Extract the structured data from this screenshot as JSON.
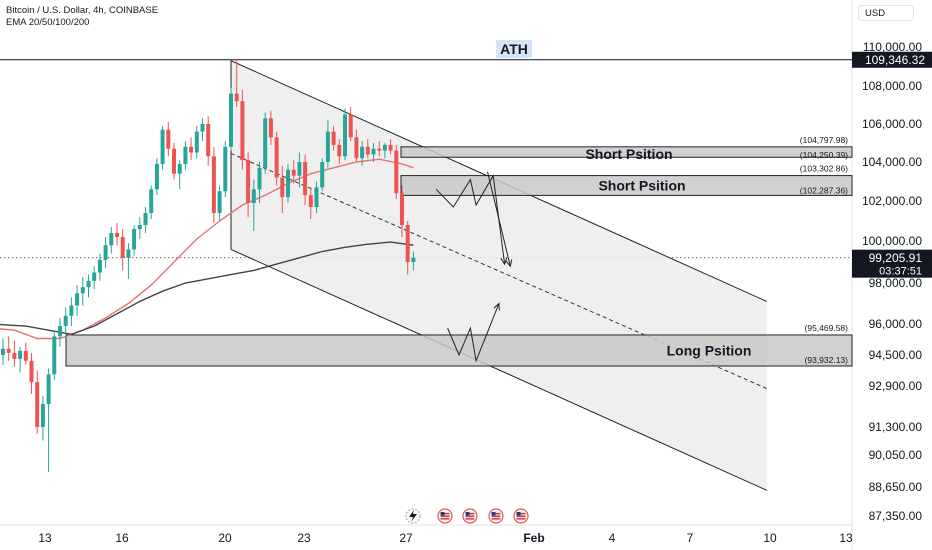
{
  "header": {
    "symbol_line": "Bitcoin / U.S. Dollar, 4h, COINBASE",
    "indicator_line": "EMA 20/50/100/200",
    "currency": "USD"
  },
  "chart_data": {
    "type": "candlestick",
    "symbol": "Bitcoin / U.S. Dollar",
    "interval": "4h",
    "exchange": "COINBASE",
    "indicators": "EMA 20/50/100/200",
    "x_tick_labels": [
      "13",
      "16",
      "20",
      "23",
      "27",
      "Feb",
      "4",
      "7",
      "10",
      "13"
    ],
    "y_tick_labels": [
      "110,000.00",
      "108,000.00",
      "106,000.00",
      "104,000.00",
      "102,000.00",
      "100,000.00",
      "98,000.00",
      "96,000.00",
      "94,500.00",
      "92,900.00",
      "91,300.00",
      "90,050.00",
      "88,650.00",
      "87,350.00"
    ],
    "ylim": [
      87000,
      111000
    ],
    "ath": {
      "label": "ATH",
      "price": 109346.32,
      "price_label": "109,346.32"
    },
    "current_price": {
      "price": 99205.91,
      "price_label": "99,205.91",
      "countdown": "03:37:51"
    },
    "zones": [
      {
        "label": "Short Psition",
        "top": 104797.98,
        "bottom": 104250.39,
        "top_label": "(104,797.98)",
        "bottom_label": "(104,250.39)"
      },
      {
        "label": "Short Psition",
        "top": 103302.86,
        "bottom": 102287.36,
        "top_label": "(103,302.86)",
        "bottom_label": "(102,287.36)"
      },
      {
        "label": "Long Psition",
        "top": 95469.58,
        "bottom": 93932.13,
        "top_label": "(95,469.58)",
        "bottom_label": "(93,932.13)"
      }
    ],
    "series": [
      {
        "style": "ohlc",
        "values": [
          [
            94500,
            95300,
            94000,
            94800
          ],
          [
            94800,
            95400,
            94200,
            94600
          ],
          [
            94600,
            95200,
            93900,
            94300
          ],
          [
            94300,
            94900,
            93600,
            94700
          ],
          [
            94700,
            95100,
            94000,
            94200
          ],
          [
            94200,
            94600,
            92600,
            93100
          ],
          [
            93100,
            93700,
            91000,
            91300
          ],
          [
            91300,
            92500,
            90700,
            92200
          ],
          [
            92200,
            93800,
            89300,
            93500
          ],
          [
            93500,
            95600,
            93200,
            95400
          ],
          [
            95400,
            96300,
            94900,
            95900
          ],
          [
            95900,
            96800,
            95400,
            96400
          ],
          [
            96400,
            97300,
            95900,
            96900
          ],
          [
            96900,
            97900,
            96400,
            97500
          ],
          [
            97500,
            98300,
            96900,
            97800
          ],
          [
            97800,
            98400,
            97300,
            98100
          ],
          [
            98100,
            98800,
            97700,
            98500
          ],
          [
            98500,
            99400,
            98100,
            99100
          ],
          [
            99100,
            100200,
            98700,
            99800
          ],
          [
            99800,
            100700,
            99400,
            100400
          ],
          [
            100400,
            100900,
            99800,
            100200
          ],
          [
            100200,
            100600,
            98600,
            99200
          ],
          [
            99200,
            99900,
            98200,
            99600
          ],
          [
            99600,
            100800,
            99300,
            100600
          ],
          [
            100600,
            101200,
            100100,
            100800
          ],
          [
            100800,
            101700,
            100400,
            101400
          ],
          [
            101400,
            102800,
            101100,
            102600
          ],
          [
            102600,
            104200,
            102300,
            103900
          ],
          [
            103900,
            105900,
            103600,
            105700
          ],
          [
            105700,
            106100,
            104300,
            104700
          ],
          [
            104700,
            105000,
            103100,
            103400
          ],
          [
            103400,
            104100,
            102600,
            103900
          ],
          [
            103900,
            105100,
            103600,
            104800
          ],
          [
            104800,
            105300,
            104100,
            104500
          ],
          [
            104500,
            105900,
            104200,
            105600
          ],
          [
            105600,
            106300,
            105100,
            106000
          ],
          [
            106000,
            106400,
            103800,
            104300
          ],
          [
            104300,
            104800,
            100900,
            101400
          ],
          [
            101400,
            102800,
            101000,
            102500
          ],
          [
            102500,
            105100,
            102200,
            104800
          ],
          [
            104800,
            107900,
            104600,
            107600
          ],
          [
            107600,
            109346,
            106900,
            107200
          ],
          [
            107200,
            107800,
            103600,
            104100
          ],
          [
            104100,
            104500,
            101200,
            101900
          ],
          [
            101900,
            103100,
            100500,
            102600
          ],
          [
            102600,
            104000,
            101900,
            103700
          ],
          [
            103700,
            106600,
            103400,
            106300
          ],
          [
            106300,
            106700,
            104900,
            105300
          ],
          [
            105300,
            105600,
            102800,
            103200
          ],
          [
            103200,
            103800,
            101400,
            102200
          ],
          [
            102200,
            103900,
            101900,
            103600
          ],
          [
            103600,
            104100,
            102900,
            103300
          ],
          [
            103300,
            104500,
            102700,
            104000
          ],
          [
            104000,
            104400,
            101800,
            102300
          ],
          [
            102300,
            102700,
            101100,
            101700
          ],
          [
            101700,
            103000,
            101400,
            102700
          ],
          [
            102700,
            104200,
            102500,
            104000
          ],
          [
            104000,
            106200,
            103700,
            105600
          ],
          [
            105600,
            105900,
            104600,
            104900
          ],
          [
            104900,
            105200,
            103900,
            104300
          ],
          [
            104300,
            106800,
            104100,
            106500
          ],
          [
            106500,
            106900,
            105100,
            105300
          ],
          [
            105300,
            105700,
            104000,
            104200
          ],
          [
            104200,
            105100,
            103800,
            104800
          ],
          [
            104800,
            105200,
            104200,
            104400
          ],
          [
            104400,
            105000,
            104000,
            104700
          ],
          [
            104700,
            105100,
            104300,
            104600
          ],
          [
            104600,
            105000,
            104200,
            104900
          ],
          [
            104900,
            105200,
            104400,
            104600
          ],
          [
            104600,
            104900,
            102100,
            102400
          ],
          [
            102400,
            102800,
            100200,
            100800
          ],
          [
            100800,
            101000,
            98400,
            99000
          ],
          [
            99000,
            99500,
            98600,
            99206
          ]
        ]
      },
      {
        "name": "EMA 50",
        "color": "#e57373",
        "values": [
          [
            -2,
            95800
          ],
          [
            2,
            95700
          ],
          [
            6,
            95300
          ],
          [
            10,
            95300
          ],
          [
            14,
            95700
          ],
          [
            18,
            96300
          ],
          [
            22,
            97000
          ],
          [
            26,
            97900
          ],
          [
            30,
            99000
          ],
          [
            34,
            100100
          ],
          [
            38,
            101000
          ],
          [
            42,
            101800
          ],
          [
            46,
            102300
          ],
          [
            50,
            102900
          ],
          [
            54,
            103400
          ],
          [
            58,
            103700
          ],
          [
            62,
            104000
          ],
          [
            66,
            104150
          ],
          [
            70,
            103900
          ],
          [
            72,
            103700
          ]
        ]
      },
      {
        "name": "EMA 200",
        "color": "#444444",
        "values": [
          [
            -2,
            96000
          ],
          [
            4,
            95900
          ],
          [
            8,
            95700
          ],
          [
            12,
            95500
          ],
          [
            16,
            95900
          ],
          [
            20,
            96500
          ],
          [
            24,
            97100
          ],
          [
            28,
            97600
          ],
          [
            32,
            98000
          ],
          [
            36,
            98200
          ],
          [
            40,
            98400
          ],
          [
            44,
            98600
          ],
          [
            48,
            98900
          ],
          [
            52,
            99200
          ],
          [
            56,
            99500
          ],
          [
            60,
            99700
          ],
          [
            64,
            99850
          ],
          [
            68,
            99950
          ],
          [
            72,
            99800
          ]
        ]
      }
    ],
    "channel": {
      "upper": [
        [
          40,
          109300
        ],
        [
          134,
          97100
        ]
      ],
      "lower": [
        [
          40,
          99600
        ],
        [
          134,
          88500
        ]
      ],
      "mid": [
        [
          40,
          104450
        ],
        [
          134,
          92800
        ]
      ]
    },
    "projections": [
      {
        "style": "arrow",
        "values": [
          [
            76,
            102600
          ],
          [
            79,
            101700
          ],
          [
            82,
            103100
          ],
          [
            83,
            101800
          ],
          [
            86,
            103300
          ],
          [
            88,
            98900
          ]
        ]
      },
      {
        "style": "arrow",
        "values": [
          [
            85,
            103500
          ],
          [
            89,
            98800
          ]
        ]
      },
      {
        "style": "arrow",
        "values": [
          [
            78,
            95800
          ],
          [
            80,
            94500
          ],
          [
            82,
            95800
          ],
          [
            83,
            94200
          ],
          [
            85,
            95600
          ],
          [
            87,
            97000
          ]
        ]
      }
    ],
    "event_icons": [
      "flash-icon",
      "us-flag-icon",
      "us-flag-icon",
      "us-flag-icon",
      "us-flag-icon",
      "us-flag-icon"
    ],
    "event_bars": [
      73,
      78,
      83,
      88,
      93,
      97
    ]
  }
}
